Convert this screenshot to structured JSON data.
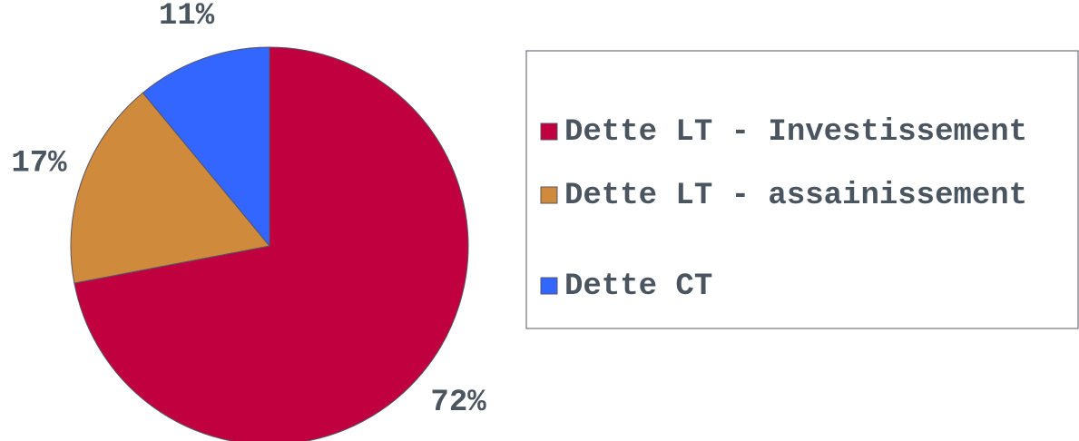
{
  "chart_data": {
    "type": "pie",
    "categories": [
      "Dette LT - Investissement",
      "Dette LT - assainissement",
      "Dette CT"
    ],
    "values": [
      72,
      17,
      11
    ],
    "value_labels": [
      "72%",
      "17%",
      "11%"
    ],
    "colors": [
      "#c0003f",
      "#d08a3c",
      "#3366ff"
    ],
    "legend": "right"
  }
}
